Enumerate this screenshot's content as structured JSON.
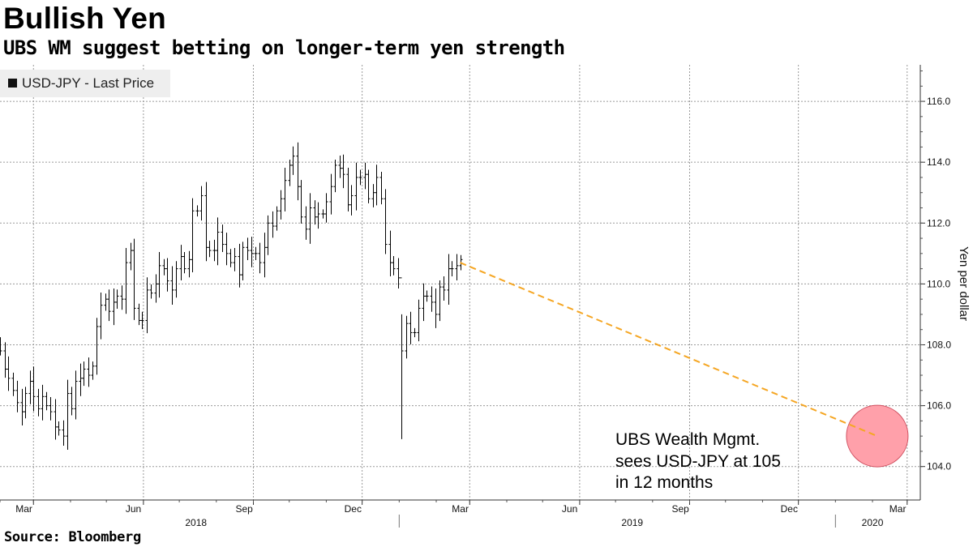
{
  "chart_data": {
    "type": "bar",
    "style": "ohlc",
    "title": "Bullish Yen",
    "subtitle": "UBS WM suggest betting on longer-term yen strength",
    "source": "Source: Bloomberg",
    "ylabel": "Yen per dollar",
    "ylim": [
      102.9,
      117.2
    ],
    "yticks": [
      "116.0",
      "114.0",
      "112.0",
      "110.0",
      "108.0",
      "106.0",
      "104.0"
    ],
    "xlim": [
      "2018-02-01",
      "2020-03-12"
    ],
    "month_ticks": [
      {
        "label": "Mar",
        "date": "2018-03-01"
      },
      {
        "label": "Jun",
        "date": "2018-06-01"
      },
      {
        "label": "Sep",
        "date": "2018-09-01"
      },
      {
        "label": "Dec",
        "date": "2018-12-01"
      },
      {
        "label": "Mar",
        "date": "2019-03-01"
      },
      {
        "label": "Jun",
        "date": "2019-06-01"
      },
      {
        "label": "Sep",
        "date": "2019-09-01"
      },
      {
        "label": "Dec",
        "date": "2019-12-01"
      },
      {
        "label": "Mar",
        "date": "2020-03-01"
      }
    ],
    "year_labels": [
      {
        "label": "2018",
        "date": "2018-07-15"
      },
      {
        "label": "2019",
        "date": "2019-07-15"
      },
      {
        "label": "2020",
        "date": "2020-02-01"
      }
    ],
    "year_boundaries": [
      "2019-01-01",
      "2020-01-01"
    ],
    "legend": {
      "label": "USD-JPY - Last Price",
      "position": "top-left"
    },
    "series": [
      {
        "name": "USD-JPY - Last Price",
        "color": "#000000",
        "points": [
          [
            "2018-02-01",
            107.8
          ],
          [
            "2018-02-05",
            107.2
          ],
          [
            "2018-02-08",
            106.9
          ],
          [
            "2018-02-12",
            106.5
          ],
          [
            "2018-02-15",
            106.1
          ],
          [
            "2018-02-19",
            105.8
          ],
          [
            "2018-02-22",
            106.4
          ],
          [
            "2018-02-26",
            106.8
          ],
          [
            "2018-03-01",
            106.3
          ],
          [
            "2018-03-05",
            105.9
          ],
          [
            "2018-03-08",
            106.3
          ],
          [
            "2018-03-12",
            106.0
          ],
          [
            "2018-03-15",
            105.8
          ],
          [
            "2018-03-19",
            105.3
          ],
          [
            "2018-03-22",
            105.2
          ],
          [
            "2018-03-26",
            105.0
          ],
          [
            "2018-03-29",
            106.4
          ],
          [
            "2018-04-02",
            105.9
          ],
          [
            "2018-04-05",
            106.8
          ],
          [
            "2018-04-09",
            106.9
          ],
          [
            "2018-04-12",
            107.2
          ],
          [
            "2018-04-16",
            107.0
          ],
          [
            "2018-04-19",
            107.3
          ],
          [
            "2018-04-23",
            108.6
          ],
          [
            "2018-04-26",
            109.3
          ],
          [
            "2018-04-30",
            109.5
          ],
          [
            "2018-05-03",
            109.1
          ],
          [
            "2018-05-07",
            109.4
          ],
          [
            "2018-05-10",
            109.6
          ],
          [
            "2018-05-14",
            109.5
          ],
          [
            "2018-05-17",
            110.7
          ],
          [
            "2018-05-21",
            111.1
          ],
          [
            "2018-05-24",
            109.2
          ],
          [
            "2018-05-28",
            108.8
          ],
          [
            "2018-05-31",
            108.8
          ],
          [
            "2018-06-04",
            109.8
          ],
          [
            "2018-06-07",
            109.7
          ],
          [
            "2018-06-11",
            110.0
          ],
          [
            "2018-06-14",
            110.6
          ],
          [
            "2018-06-18",
            110.5
          ],
          [
            "2018-06-21",
            110.1
          ],
          [
            "2018-06-25",
            109.8
          ],
          [
            "2018-06-28",
            110.5
          ],
          [
            "2018-07-02",
            110.9
          ],
          [
            "2018-07-05",
            110.5
          ],
          [
            "2018-07-09",
            110.8
          ],
          [
            "2018-07-12",
            112.4
          ],
          [
            "2018-07-16",
            112.4
          ],
          [
            "2018-07-19",
            112.9
          ],
          [
            "2018-07-23",
            111.2
          ],
          [
            "2018-07-26",
            111.1
          ],
          [
            "2018-07-30",
            111.1
          ],
          [
            "2018-08-02",
            111.7
          ],
          [
            "2018-08-06",
            111.3
          ],
          [
            "2018-08-09",
            111.0
          ],
          [
            "2018-08-13",
            110.7
          ],
          [
            "2018-08-16",
            110.9
          ],
          [
            "2018-08-20",
            110.3
          ],
          [
            "2018-08-23",
            111.2
          ],
          [
            "2018-08-27",
            111.1
          ],
          [
            "2018-08-30",
            111.0
          ],
          [
            "2018-09-03",
            111.0
          ],
          [
            "2018-09-06",
            110.7
          ],
          [
            "2018-09-10",
            111.2
          ],
          [
            "2018-09-13",
            112.0
          ],
          [
            "2018-09-17",
            111.9
          ],
          [
            "2018-09-20",
            112.4
          ],
          [
            "2018-09-24",
            112.8
          ],
          [
            "2018-09-27",
            113.4
          ],
          [
            "2018-10-01",
            113.9
          ],
          [
            "2018-10-04",
            114.2
          ],
          [
            "2018-10-08",
            113.2
          ],
          [
            "2018-10-11",
            112.2
          ],
          [
            "2018-10-15",
            111.8
          ],
          [
            "2018-10-18",
            112.5
          ],
          [
            "2018-10-22",
            112.2
          ],
          [
            "2018-10-25",
            112.3
          ],
          [
            "2018-10-29",
            112.3
          ],
          [
            "2018-11-01",
            112.7
          ],
          [
            "2018-11-05",
            113.2
          ],
          [
            "2018-11-08",
            113.9
          ],
          [
            "2018-11-12",
            113.8
          ],
          [
            "2018-11-15",
            113.6
          ],
          [
            "2018-11-19",
            112.6
          ],
          [
            "2018-11-22",
            112.9
          ],
          [
            "2018-11-26",
            113.5
          ],
          [
            "2018-11-29",
            113.5
          ],
          [
            "2018-12-03",
            113.6
          ],
          [
            "2018-12-06",
            112.8
          ],
          [
            "2018-12-10",
            113.0
          ],
          [
            "2018-12-13",
            113.5
          ],
          [
            "2018-12-17",
            112.8
          ],
          [
            "2018-12-20",
            111.3
          ],
          [
            "2018-12-24",
            110.7
          ],
          [
            "2018-12-27",
            110.5
          ],
          [
            "2018-12-31",
            110.2
          ],
          [
            "2019-01-03",
            107.8
          ],
          [
            "2019-01-07",
            108.7
          ],
          [
            "2019-01-10",
            108.4
          ],
          [
            "2019-01-14",
            108.4
          ],
          [
            "2019-01-17",
            109.2
          ],
          [
            "2019-01-21",
            109.6
          ],
          [
            "2019-01-24",
            109.6
          ],
          [
            "2019-01-28",
            109.4
          ],
          [
            "2019-01-31",
            109.0
          ],
          [
            "2019-02-04",
            109.9
          ],
          [
            "2019-02-07",
            109.8
          ],
          [
            "2019-02-11",
            110.5
          ],
          [
            "2019-02-14",
            110.5
          ],
          [
            "2019-02-18",
            110.6
          ],
          [
            "2019-02-21",
            110.8
          ]
        ]
      },
      {
        "name": "",
        "type": "line",
        "style": "dashed",
        "color": "#F5A623",
        "points": [
          [
            "2019-02-21",
            110.7
          ],
          [
            "2020-02-05",
            105.0
          ]
        ]
      }
    ],
    "annotations": [
      {
        "type": "circle",
        "date": "2020-02-05",
        "value": 105.0,
        "color": "#FFA0AA"
      },
      {
        "type": "text",
        "lines": [
          "UBS Wealth Mgmt.",
          "sees USD-JPY at 105",
          "in 12 months"
        ]
      }
    ],
    "grid": true
  }
}
